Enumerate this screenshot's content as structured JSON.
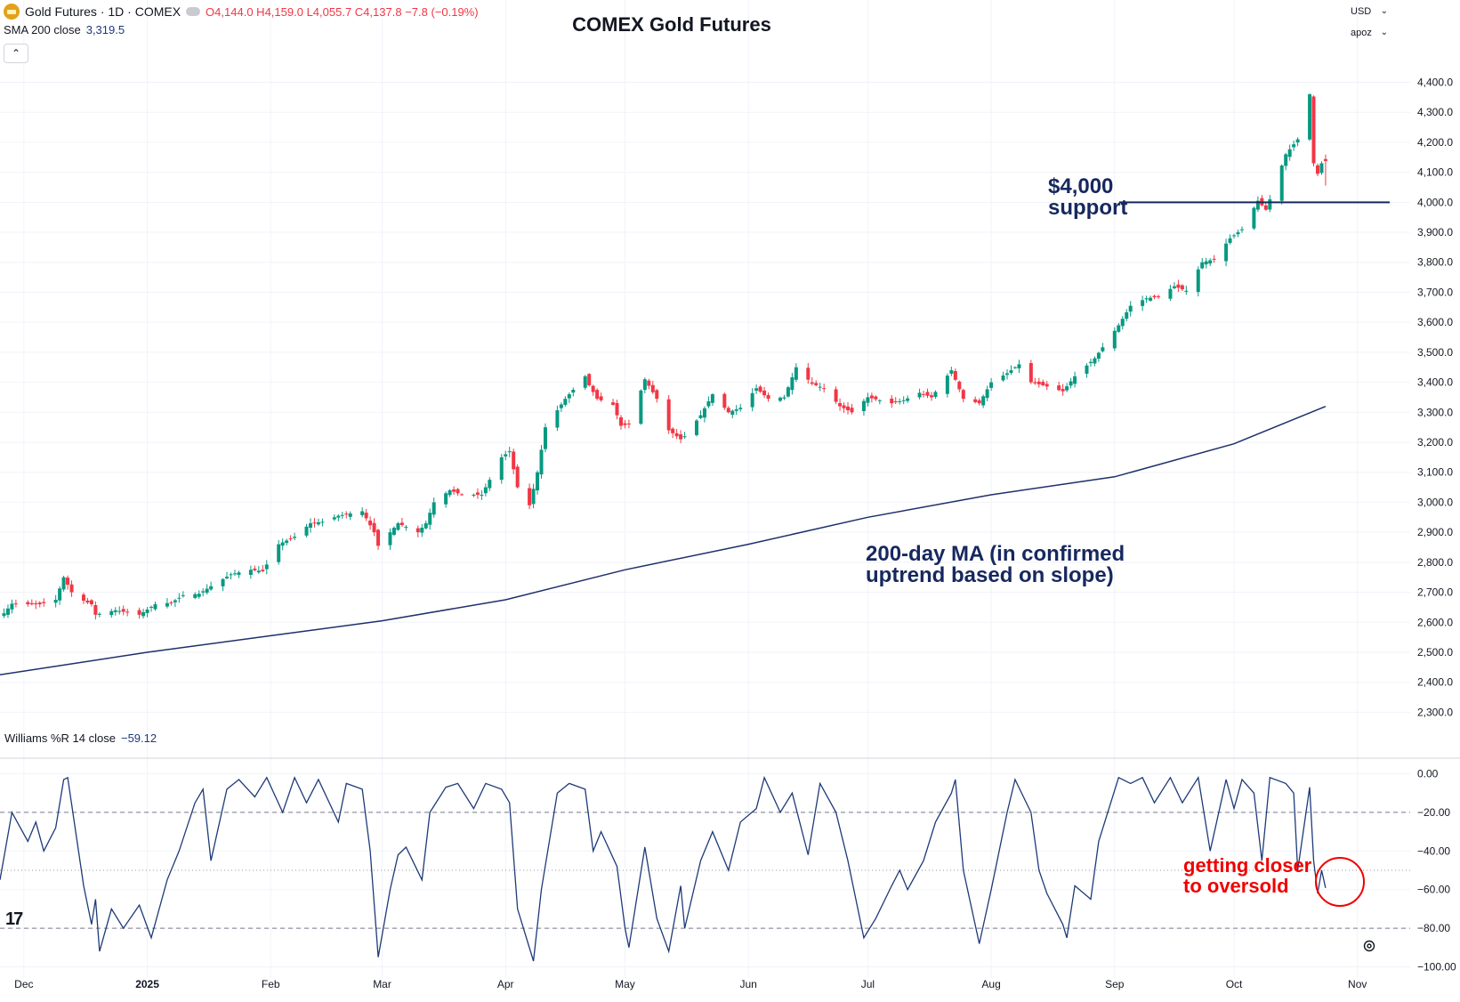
{
  "header": {
    "symbol": "Gold Futures · 1D · COMEX",
    "open_label": "O",
    "open": "4,144.0",
    "high_label": "H",
    "high": "4,159.0",
    "low_label": "L",
    "low": "4,055.7",
    "close_label": "C",
    "close": "4,137.8",
    "change": "−7.8 (−0.19%)",
    "sma_label": "SMA 200 close",
    "sma_value": "3,319.5",
    "title": "COMEX Gold Futures",
    "currency": "USD",
    "scale_mode": "apoz"
  },
  "oscillator": {
    "label": "Williams %R 14 close",
    "value": "−59.12"
  },
  "annotations": {
    "support_line1": "$4,000",
    "support_line2": "support",
    "ma_line1": "200-day MA (in confirmed",
    "ma_line2": "uptrend based on slope)",
    "oversold_line1": "getting closer",
    "oversold_line2": "to oversold"
  },
  "colors": {
    "up": "#089981",
    "down": "#f23645",
    "sma": "#1e2f6b",
    "wr": "#1e3a78",
    "annotation_red": "#f00000",
    "grid": "#f0f3fa"
  },
  "chart_data": [
    {
      "type": "candlestick",
      "title": "COMEX Gold Futures",
      "ylim": [
        2230,
        4440
      ],
      "y_ticks": [
        "4,400.0",
        "4,300.0",
        "4,200.0",
        "4,100.0",
        "4,000.0",
        "3,900.0",
        "3,800.0",
        "3,700.0",
        "3,600.0",
        "3,500.0",
        "3,400.0",
        "3,300.0",
        "3,200.0",
        "3,100.0",
        "3,000.0",
        "2,900.0",
        "2,800.0",
        "2,700.0",
        "2,600.0",
        "2,500.0",
        "2,400.0",
        "2,300.0"
      ],
      "x_labels": [
        "Dec",
        "2025",
        "Feb",
        "Mar",
        "Apr",
        "May",
        "Jun",
        "Jul",
        "Aug",
        "Sep",
        "Oct",
        "Nov"
      ],
      "x_label_dates": [
        "2024-12-01",
        "2025-01-01",
        "2025-02-01",
        "2025-03-01",
        "2025-04-01",
        "2025-05-01",
        "2025-06-01",
        "2025-07-01",
        "2025-08-01",
        "2025-09-01",
        "2025-10-01",
        "2025-11-01"
      ],
      "x_range": [
        "2024-11-25",
        "2025-11-10"
      ],
      "horizontal_line": 4000,
      "close_anchors": [
        [
          "2024-11-26",
          2630
        ],
        [
          "2024-11-28",
          2662
        ],
        [
          "2024-12-02",
          2660
        ],
        [
          "2024-12-05",
          2660
        ],
        [
          "2024-12-09",
          2675
        ],
        [
          "2024-12-11",
          2750
        ],
        [
          "2024-12-13",
          2700
        ],
        [
          "2024-12-16",
          2672
        ],
        [
          "2024-12-18",
          2660
        ],
        [
          "2024-12-19",
          2625
        ],
        [
          "2024-12-24",
          2640
        ],
        [
          "2024-12-30",
          2625
        ],
        [
          "2025-01-03",
          2660
        ],
        [
          "2025-01-07",
          2665
        ],
        [
          "2025-01-10",
          2690
        ],
        [
          "2025-01-14",
          2695
        ],
        [
          "2025-01-17",
          2720
        ],
        [
          "2025-01-22",
          2760
        ],
        [
          "2025-01-27",
          2775
        ],
        [
          "2025-01-30",
          2770
        ],
        [
          "2025-02-03",
          2860
        ],
        [
          "2025-02-07",
          2885
        ],
        [
          "2025-02-11",
          2930
        ],
        [
          "2025-02-14",
          2935
        ],
        [
          "2025-02-18",
          2955
        ],
        [
          "2025-02-20",
          2960
        ],
        [
          "2025-02-24",
          2970
        ],
        [
          "2025-02-27",
          2900
        ],
        [
          "2025-02-28",
          2855
        ],
        [
          "2025-03-05",
          2930
        ],
        [
          "2025-03-10",
          2900
        ],
        [
          "2025-03-12",
          2930
        ],
        [
          "2025-03-14",
          3000
        ],
        [
          "2025-03-18",
          3040
        ],
        [
          "2025-03-21",
          3025
        ],
        [
          "2025-03-26",
          3025
        ],
        [
          "2025-03-31",
          3150
        ],
        [
          "2025-04-02",
          3170
        ],
        [
          "2025-04-04",
          3050
        ],
        [
          "2025-04-07",
          2990
        ],
        [
          "2025-04-09",
          3100
        ],
        [
          "2025-04-11",
          3250
        ],
        [
          "2025-04-16",
          3345
        ],
        [
          "2025-04-21",
          3420
        ],
        [
          "2025-04-22",
          3390
        ],
        [
          "2025-04-24",
          3345
        ],
        [
          "2025-04-28",
          3325
        ],
        [
          "2025-04-30",
          3255
        ],
        [
          "2025-05-02",
          3260
        ],
        [
          "2025-05-06",
          3410
        ],
        [
          "2025-05-09",
          3345
        ],
        [
          "2025-05-12",
          3240
        ],
        [
          "2025-05-15",
          3210
        ],
        [
          "2025-05-16",
          3220
        ],
        [
          "2025-05-20",
          3290
        ],
        [
          "2025-05-23",
          3360
        ],
        [
          "2025-05-27",
          3300
        ],
        [
          "2025-05-30",
          3315
        ],
        [
          "2025-06-03",
          3380
        ],
        [
          "2025-06-06",
          3345
        ],
        [
          "2025-06-10",
          3350
        ],
        [
          "2025-06-13",
          3450
        ],
        [
          "2025-06-17",
          3395
        ],
        [
          "2025-06-20",
          3380
        ],
        [
          "2025-06-24",
          3320
        ],
        [
          "2025-06-27",
          3300
        ],
        [
          "2025-07-01",
          3350
        ],
        [
          "2025-07-07",
          3330
        ],
        [
          "2025-07-10",
          3340
        ],
        [
          "2025-07-14",
          3365
        ],
        [
          "2025-07-17",
          3350
        ],
        [
          "2025-07-22",
          3440
        ],
        [
          "2025-07-25",
          3345
        ],
        [
          "2025-07-29",
          3330
        ],
        [
          "2025-08-01",
          3400
        ],
        [
          "2025-08-05",
          3430
        ],
        [
          "2025-08-08",
          3460
        ],
        [
          "2025-08-11",
          3400
        ],
        [
          "2025-08-14",
          3390
        ],
        [
          "2025-08-19",
          3370
        ],
        [
          "2025-08-22",
          3420
        ],
        [
          "2025-08-27",
          3480
        ],
        [
          "2025-09-02",
          3590
        ],
        [
          "2025-09-05",
          3655
        ],
        [
          "2025-09-09",
          3680
        ],
        [
          "2025-09-12",
          3685
        ],
        [
          "2025-09-16",
          3720
        ],
        [
          "2025-09-19",
          3705
        ],
        [
          "2025-09-23",
          3800
        ],
        [
          "2025-09-26",
          3810
        ],
        [
          "2025-09-30",
          3880
        ],
        [
          "2025-10-03",
          3910
        ],
        [
          "2025-10-07",
          4005
        ],
        [
          "2025-10-09",
          3975
        ],
        [
          "2025-10-10",
          4010
        ],
        [
          "2025-10-14",
          4160
        ],
        [
          "2025-10-17",
          4210
        ],
        [
          "2025-10-20",
          4360
        ],
        [
          "2025-10-21",
          4130
        ],
        [
          "2025-10-22",
          4095
        ],
        [
          "2025-10-23",
          4130
        ],
        [
          "2025-10-24",
          4137.8
        ]
      ],
      "last_candle": {
        "date": "2025-10-24",
        "open": 4144.0,
        "high": 4159.0,
        "low": 4055.7,
        "close": 4137.8
      },
      "sma200": {
        "name": "SMA 200 close",
        "points": [
          [
            "2024-11-25",
            2425
          ],
          [
            "2025-01-01",
            2500
          ],
          [
            "2025-02-01",
            2555
          ],
          [
            "2025-03-01",
            2605
          ],
          [
            "2025-04-01",
            2675
          ],
          [
            "2025-05-01",
            2775
          ],
          [
            "2025-06-01",
            2860
          ],
          [
            "2025-07-01",
            2950
          ],
          [
            "2025-08-01",
            3025
          ],
          [
            "2025-09-01",
            3085
          ],
          [
            "2025-10-01",
            3195
          ],
          [
            "2025-10-24",
            3319.5
          ]
        ]
      }
    },
    {
      "type": "line",
      "name": "Williams %R 14 close",
      "ylim": [
        -103,
        3
      ],
      "y_ticks": [
        "0.00",
        "−20.00",
        "−40.00",
        "−60.00",
        "−80.00",
        "−100.00"
      ],
      "y_tick_values": [
        0,
        -20,
        -40,
        -60,
        -80,
        -100
      ],
      "dashed_levels": [
        -20,
        -80
      ],
      "dotted_levels": [
        -50
      ],
      "anchors": [
        [
          "2024-11-25",
          -55
        ],
        [
          "2024-11-28",
          -20
        ],
        [
          "2024-12-02",
          -35
        ],
        [
          "2024-12-04",
          -25
        ],
        [
          "2024-12-06",
          -40
        ],
        [
          "2024-12-09",
          -28
        ],
        [
          "2024-12-11",
          -3
        ],
        [
          "2024-12-12",
          -2
        ],
        [
          "2024-12-16",
          -58
        ],
        [
          "2024-12-18",
          -78
        ],
        [
          "2024-12-19",
          -65
        ],
        [
          "2024-12-20",
          -92
        ],
        [
          "2024-12-23",
          -70
        ],
        [
          "2024-12-26",
          -80
        ],
        [
          "2024-12-30",
          -68
        ],
        [
          "2025-01-02",
          -85
        ],
        [
          "2025-01-06",
          -55
        ],
        [
          "2025-01-09",
          -40
        ],
        [
          "2025-01-13",
          -15
        ],
        [
          "2025-01-15",
          -8
        ],
        [
          "2025-01-17",
          -45
        ],
        [
          "2025-01-21",
          -8
        ],
        [
          "2025-01-24",
          -3
        ],
        [
          "2025-01-28",
          -12
        ],
        [
          "2025-01-31",
          -2
        ],
        [
          "2025-02-04",
          -20
        ],
        [
          "2025-02-07",
          -2
        ],
        [
          "2025-02-10",
          -15
        ],
        [
          "2025-02-13",
          -3
        ],
        [
          "2025-02-18",
          -25
        ],
        [
          "2025-02-20",
          -5
        ],
        [
          "2025-02-24",
          -8
        ],
        [
          "2025-02-26",
          -40
        ],
        [
          "2025-02-28",
          -95
        ],
        [
          "2025-03-03",
          -60
        ],
        [
          "2025-03-05",
          -42
        ],
        [
          "2025-03-07",
          -38
        ],
        [
          "2025-03-11",
          -55
        ],
        [
          "2025-03-13",
          -20
        ],
        [
          "2025-03-17",
          -7
        ],
        [
          "2025-03-20",
          -5
        ],
        [
          "2025-03-24",
          -18
        ],
        [
          "2025-03-27",
          -5
        ],
        [
          "2025-03-31",
          -8
        ],
        [
          "2025-04-02",
          -15
        ],
        [
          "2025-04-04",
          -70
        ],
        [
          "2025-04-08",
          -97
        ],
        [
          "2025-04-10",
          -60
        ],
        [
          "2025-04-14",
          -10
        ],
        [
          "2025-04-17",
          -5
        ],
        [
          "2025-04-21",
          -8
        ],
        [
          "2025-04-23",
          -40
        ],
        [
          "2025-04-25",
          -30
        ],
        [
          "2025-04-29",
          -48
        ],
        [
          "2025-05-01",
          -80
        ],
        [
          "2025-05-02",
          -90
        ],
        [
          "2025-05-06",
          -38
        ],
        [
          "2025-05-09",
          -75
        ],
        [
          "2025-05-12",
          -92
        ],
        [
          "2025-05-15",
          -58
        ],
        [
          "2025-05-16",
          -80
        ],
        [
          "2025-05-20",
          -45
        ],
        [
          "2025-05-23",
          -30
        ],
        [
          "2025-05-27",
          -50
        ],
        [
          "2025-05-30",
          -25
        ],
        [
          "2025-06-03",
          -18
        ],
        [
          "2025-06-05",
          -2
        ],
        [
          "2025-06-09",
          -20
        ],
        [
          "2025-06-12",
          -10
        ],
        [
          "2025-06-16",
          -42
        ],
        [
          "2025-06-19",
          -5
        ],
        [
          "2025-06-23",
          -20
        ],
        [
          "2025-06-26",
          -45
        ],
        [
          "2025-06-30",
          -85
        ],
        [
          "2025-07-03",
          -75
        ],
        [
          "2025-07-07",
          -58
        ],
        [
          "2025-07-09",
          -50
        ],
        [
          "2025-07-11",
          -60
        ],
        [
          "2025-07-15",
          -45
        ],
        [
          "2025-07-18",
          -25
        ],
        [
          "2025-07-22",
          -10
        ],
        [
          "2025-07-23",
          -3
        ],
        [
          "2025-07-25",
          -50
        ],
        [
          "2025-07-29",
          -88
        ],
        [
          "2025-08-01",
          -60
        ],
        [
          "2025-08-05",
          -20
        ],
        [
          "2025-08-07",
          -3
        ],
        [
          "2025-08-11",
          -20
        ],
        [
          "2025-08-13",
          -50
        ],
        [
          "2025-08-15",
          -62
        ],
        [
          "2025-08-19",
          -78
        ],
        [
          "2025-08-20",
          -85
        ],
        [
          "2025-08-22",
          -58
        ],
        [
          "2025-08-26",
          -65
        ],
        [
          "2025-08-28",
          -35
        ],
        [
          "2025-09-02",
          -2
        ],
        [
          "2025-09-05",
          -5
        ],
        [
          "2025-09-08",
          -2
        ],
        [
          "2025-09-11",
          -15
        ],
        [
          "2025-09-15",
          -2
        ],
        [
          "2025-09-18",
          -15
        ],
        [
          "2025-09-22",
          -2
        ],
        [
          "2025-09-25",
          -40
        ],
        [
          "2025-09-29",
          -3
        ],
        [
          "2025-10-01",
          -18
        ],
        [
          "2025-10-03",
          -3
        ],
        [
          "2025-10-06",
          -10
        ],
        [
          "2025-10-08",
          -45
        ],
        [
          "2025-10-10",
          -2
        ],
        [
          "2025-10-14",
          -5
        ],
        [
          "2025-10-16",
          -10
        ],
        [
          "2025-10-17",
          -50
        ],
        [
          "2025-10-20",
          -7
        ],
        [
          "2025-10-21",
          -45
        ],
        [
          "2025-10-22",
          -62
        ],
        [
          "2025-10-23",
          -50
        ],
        [
          "2025-10-24",
          -59.12
        ]
      ]
    }
  ]
}
